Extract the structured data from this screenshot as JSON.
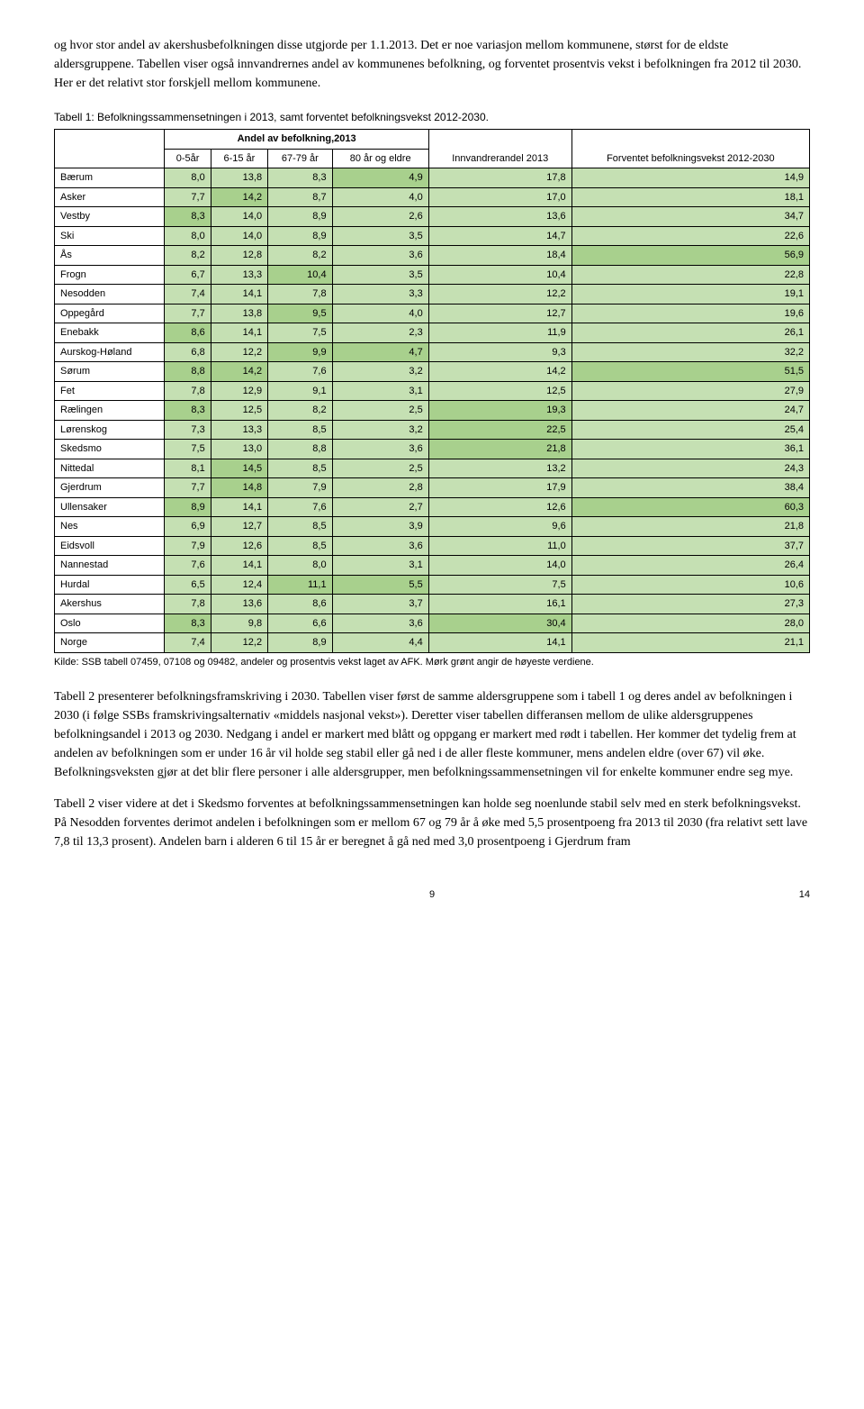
{
  "colors": {
    "light": "#c5e0b3",
    "dark": "#a8d08d",
    "border": "#000"
  },
  "para1": "og hvor stor andel av akershusbefolkningen disse utgjorde per 1.1.2013. Det er noe variasjon mellom kommunene, størst for de eldste aldersgruppene. Tabellen viser også innvandrernes andel av kommunenes befolkning, og forventet prosentvis vekst i befolkningen fra 2012 til 2030. Her er det relativt stor forskjell mellom kommunene.",
  "tableCaption": "Tabell 1: Befolkningssammensetningen i 2013, samt forventet befolkningsvekst 2012-2030.",
  "headers": {
    "group": "Andel av befolkning,2013",
    "c1": "0-5år",
    "c2": "6-15 år",
    "c3": "67-79 år",
    "c4": "80 år og eldre",
    "c5": "Innvandrerandel 2013",
    "c6": "Forventet befolkningsvekst 2012-2030"
  },
  "rows": [
    {
      "label": "Bærum",
      "v": [
        8.0,
        13.8,
        8.3,
        4.9,
        17.8,
        14.9
      ]
    },
    {
      "label": "Asker",
      "v": [
        7.7,
        14.2,
        8.7,
        4.0,
        17.0,
        18.1
      ]
    },
    {
      "label": "Vestby",
      "v": [
        8.3,
        14.0,
        8.9,
        2.6,
        13.6,
        34.7
      ]
    },
    {
      "label": "Ski",
      "v": [
        8.0,
        14.0,
        8.9,
        3.5,
        14.7,
        22.6
      ]
    },
    {
      "label": "Ås",
      "v": [
        8.2,
        12.8,
        8.2,
        3.6,
        18.4,
        56.9
      ]
    },
    {
      "label": "Frogn",
      "v": [
        6.7,
        13.3,
        10.4,
        3.5,
        10.4,
        22.8
      ]
    },
    {
      "label": "Nesodden",
      "v": [
        7.4,
        14.1,
        7.8,
        3.3,
        12.2,
        19.1
      ]
    },
    {
      "label": "Oppegård",
      "v": [
        7.7,
        13.8,
        9.5,
        4.0,
        12.7,
        19.6
      ]
    },
    {
      "label": "Enebakk",
      "v": [
        8.6,
        14.1,
        7.5,
        2.3,
        11.9,
        26.1
      ]
    },
    {
      "label": "Aurskog-Høland",
      "v": [
        6.8,
        12.2,
        9.9,
        4.7,
        9.3,
        32.2
      ]
    },
    {
      "label": "Sørum",
      "v": [
        8.8,
        14.2,
        7.6,
        3.2,
        14.2,
        51.5
      ]
    },
    {
      "label": "Fet",
      "v": [
        7.8,
        12.9,
        9.1,
        3.1,
        12.5,
        27.9
      ]
    },
    {
      "label": "Rælingen",
      "v": [
        8.3,
        12.5,
        8.2,
        2.5,
        19.3,
        24.7
      ]
    },
    {
      "label": "Lørenskog",
      "v": [
        7.3,
        13.3,
        8.5,
        3.2,
        22.5,
        25.4
      ]
    },
    {
      "label": "Skedsmo",
      "v": [
        7.5,
        13.0,
        8.8,
        3.6,
        21.8,
        36.1
      ]
    },
    {
      "label": "Nittedal",
      "v": [
        8.1,
        14.5,
        8.5,
        2.5,
        13.2,
        24.3
      ]
    },
    {
      "label": "Gjerdrum",
      "v": [
        7.7,
        14.8,
        7.9,
        2.8,
        17.9,
        38.4
      ]
    },
    {
      "label": "Ullensaker",
      "v": [
        8.9,
        14.1,
        7.6,
        2.7,
        12.6,
        60.3
      ]
    },
    {
      "label": "Nes",
      "v": [
        6.9,
        12.7,
        8.5,
        3.9,
        9.6,
        21.8
      ]
    },
    {
      "label": "Eidsvoll",
      "v": [
        7.9,
        12.6,
        8.5,
        3.6,
        11.0,
        37.7
      ]
    },
    {
      "label": "Nannestad",
      "v": [
        7.6,
        14.1,
        8.0,
        3.1,
        14.0,
        26.4
      ]
    },
    {
      "label": "Hurdal",
      "v": [
        6.5,
        12.4,
        11.1,
        5.5,
        7.5,
        10.6
      ]
    },
    {
      "label": "Akershus",
      "v": [
        7.8,
        13.6,
        8.6,
        3.7,
        16.1,
        27.3
      ]
    },
    {
      "label": "Oslo",
      "v": [
        8.3,
        9.8,
        6.6,
        3.6,
        30.4,
        28.0
      ]
    },
    {
      "label": "Norge",
      "v": [
        7.4,
        12.2,
        8.9,
        4.4,
        14.1,
        21.1
      ]
    }
  ],
  "darkMap": {
    "0": {
      "8.3": 1,
      "8.6": 1,
      "8.8": 1,
      "8.9": 1
    },
    "1": {
      "14.2": 1,
      "14.5": 1,
      "14.8": 1
    },
    "2": {
      "9.5": 1,
      "9.9": 1,
      "10.4": 1,
      "11.1": 1
    },
    "3": {
      "4.7": 1,
      "4.9": 1,
      "5.5": 1
    },
    "4": {
      "19.3": 1,
      "21.8": 1,
      "22.5": 1,
      "30.4": 1
    },
    "5": {
      "51.5": 1,
      "56.9": 1,
      "60.3": 1
    }
  },
  "sourceNote": "Kilde: SSB tabell 07459, 07108 og 09482, andeler og prosentvis vekst laget av AFK. Mørk grønt angir de høyeste verdiene.",
  "para2": "Tabell 2 presenterer befolkningsframskriving i 2030. Tabellen viser først de samme aldersgruppene som i tabell 1 og deres andel av befolkningen i 2030 (i følge SSBs framskrivingsalternativ «middels nasjonal vekst»). Deretter viser tabellen differansen mellom de ulike aldersgruppenes befolkningsandel i 2013 og 2030. Nedgang i andel er markert med blått og oppgang er markert med rødt i tabellen. Her kommer det tydelig frem at andelen av befolkningen som er under 16 år vil holde seg stabil eller gå ned i de aller fleste kommuner, mens andelen eldre (over 67) vil øke. Befolkningsveksten gjør at det blir flere personer i alle aldersgrupper, men befolkningssammensetningen vil for enkelte kommuner endre seg mye.",
  "para3": "Tabell 2 viser videre at det i Skedsmo forventes at befolkningssammensetningen kan holde seg noenlunde stabil selv med en sterk befolkningsvekst. På Nesodden forventes derimot andelen i befolkningen som er mellom 67 og 79 år å øke med 5,5 prosentpoeng fra 2013 til 2030 (fra relativt sett lave 7,8 til 13,3 prosent). Andelen barn i alderen 6 til 15 år er beregnet å gå ned med 3,0 prosentpoeng i Gjerdrum fram",
  "pageLeft": "9",
  "pageRight": "14"
}
